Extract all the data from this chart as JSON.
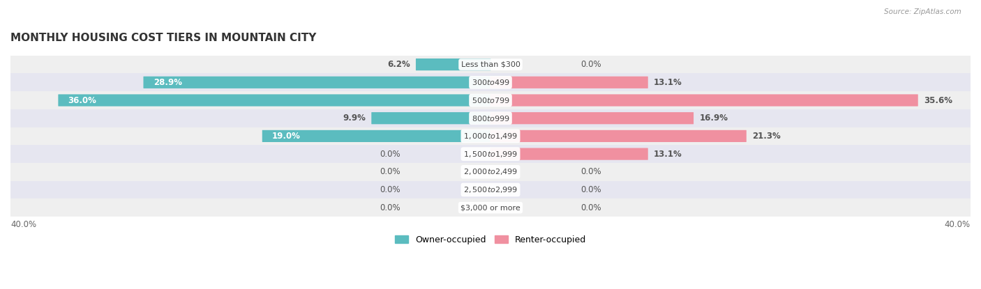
{
  "title": "MONTHLY HOUSING COST TIERS IN MOUNTAIN CITY",
  "source": "Source: ZipAtlas.com",
  "categories": [
    "Less than $300",
    "$300 to $499",
    "$500 to $799",
    "$800 to $999",
    "$1,000 to $1,499",
    "$1,500 to $1,999",
    "$2,000 to $2,499",
    "$2,500 to $2,999",
    "$3,000 or more"
  ],
  "owner_values": [
    6.2,
    28.9,
    36.0,
    9.9,
    19.0,
    0.0,
    0.0,
    0.0,
    0.0
  ],
  "renter_values": [
    0.0,
    13.1,
    35.6,
    16.9,
    21.3,
    13.1,
    0.0,
    0.0,
    0.0
  ],
  "owner_color": "#5bbcbf",
  "renter_color": "#f090a0",
  "bg_color": "#ffffff",
  "row_colors": [
    "#efefef",
    "#e6e6f0"
  ],
  "axis_max": 40.0,
  "title_fontsize": 11,
  "label_fontsize": 8.5,
  "category_fontsize": 8,
  "legend_fontsize": 9,
  "value_label_color_outside": "#555555",
  "value_label_color_inside": "#ffffff"
}
